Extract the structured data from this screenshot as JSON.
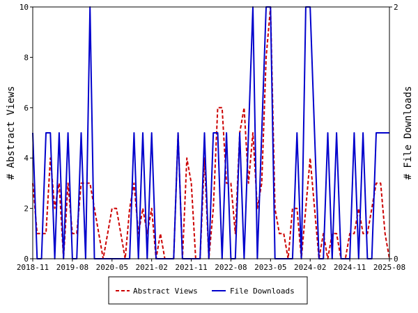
{
  "chart_data": {
    "type": "line",
    "x_tick_labels": [
      "2018-11",
      "2019-08",
      "2020-05",
      "2021-02",
      "2021-11",
      "2022-08",
      "2023-05",
      "2024-02",
      "2024-11",
      "2025-08"
    ],
    "y_left": {
      "label": "# Abstract Views",
      "ylim": [
        0,
        10
      ],
      "ticks": [
        "0",
        "2",
        "4",
        "6",
        "8",
        "10"
      ]
    },
    "y_right": {
      "label": "# File Downloads",
      "ylim": [
        0,
        2
      ],
      "ticks": [
        "0",
        "2"
      ]
    },
    "legend_position": "bottom",
    "grid": false,
    "series": [
      {
        "name": "Abstract Views",
        "axis": "left",
        "color": "#cc0000",
        "style": "dashed",
        "x": [
          0,
          1,
          2,
          3,
          4,
          5,
          6,
          7,
          8,
          9,
          10,
          11,
          12,
          13,
          14,
          15,
          16,
          17,
          18,
          19,
          20,
          21,
          22,
          23,
          24,
          25,
          26,
          27,
          28,
          29,
          30,
          31,
          32,
          33,
          34,
          35,
          36,
          37,
          38,
          39,
          40,
          41,
          42,
          43,
          44,
          45,
          46,
          47,
          48,
          49,
          50,
          51,
          52,
          53,
          54,
          55,
          56,
          57,
          58,
          59,
          60,
          61,
          62,
          63,
          64,
          65,
          66,
          67,
          68,
          69,
          70,
          71,
          72,
          73,
          74,
          75,
          76,
          77,
          78,
          79,
          80,
          81
        ],
        "values": [
          3,
          1,
          1,
          1,
          4,
          2,
          3,
          0,
          3,
          1,
          1,
          3,
          3,
          3,
          2,
          1,
          0,
          1,
          2,
          2,
          1,
          0,
          2,
          3,
          1,
          2,
          1,
          2,
          0,
          1,
          0,
          0,
          0,
          5,
          0,
          4,
          3,
          0,
          0,
          4,
          0,
          2,
          6,
          6,
          3,
          3,
          1,
          5,
          6,
          3,
          5,
          2,
          3,
          8,
          10,
          2,
          1,
          1,
          0,
          2,
          2,
          0,
          2,
          4,
          2,
          0,
          1,
          0,
          1,
          1,
          0,
          0,
          1,
          1,
          2,
          1,
          1,
          2,
          3,
          3,
          1,
          0
        ]
      },
      {
        "name": "File Downloads",
        "axis": "right",
        "color": "#0000cc",
        "style": "solid",
        "x": [
          0,
          1,
          2,
          3,
          4,
          5,
          6,
          7,
          8,
          9,
          10,
          11,
          12,
          13,
          14,
          15,
          16,
          17,
          18,
          19,
          20,
          21,
          22,
          23,
          24,
          25,
          26,
          27,
          28,
          29,
          30,
          31,
          32,
          33,
          34,
          35,
          36,
          37,
          38,
          39,
          40,
          41,
          42,
          43,
          44,
          45,
          46,
          47,
          48,
          49,
          50,
          51,
          52,
          53,
          54,
          55,
          56,
          57,
          58,
          59,
          60,
          61,
          62,
          63,
          64,
          65,
          66,
          67,
          68,
          69,
          70,
          71,
          72,
          73,
          74,
          75,
          76,
          77,
          78,
          79,
          80,
          81
        ],
        "values": [
          1,
          0,
          0,
          1,
          1,
          0,
          1,
          0,
          1,
          0,
          0,
          1,
          0,
          2,
          0,
          0,
          0,
          0,
          0,
          0,
          0,
          0,
          0,
          1,
          0,
          1,
          0,
          1,
          0,
          0,
          0,
          0,
          0,
          1,
          0,
          0,
          0,
          0,
          0,
          1,
          0,
          1,
          1,
          0,
          1,
          0,
          0,
          1,
          0,
          1,
          2,
          0,
          1,
          2,
          2,
          0,
          0,
          0,
          0,
          0,
          1,
          0,
          2,
          2,
          1,
          0,
          0,
          1,
          0,
          1,
          0,
          0,
          0,
          1,
          0,
          1,
          0,
          0,
          1,
          1,
          1,
          1
        ]
      }
    ]
  }
}
